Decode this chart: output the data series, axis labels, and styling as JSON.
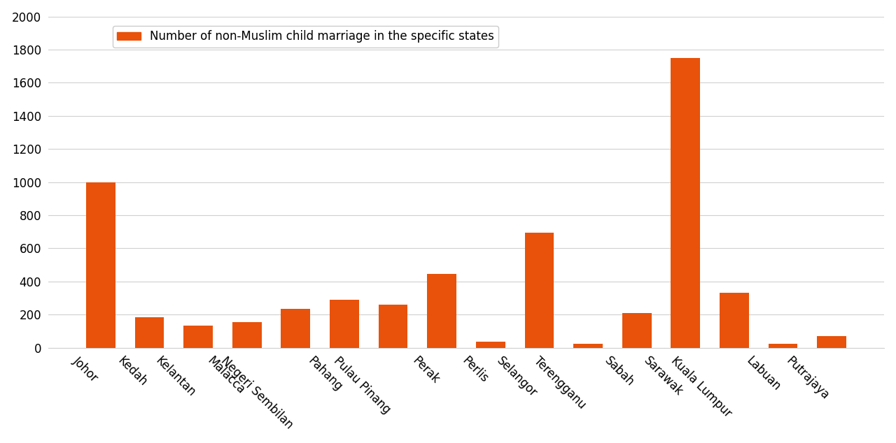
{
  "categories": [
    "Johor",
    "Kedah",
    "Kelantan",
    "Malacca",
    "Negeri Sembilan",
    "Pahang",
    "Pulau Pinang",
    "Perak",
    "Perlis",
    "Selangor",
    "Terengganu",
    "Sabah",
    "Sarawak",
    "Kuala Lumpur",
    "Labuan",
    "Putrajaya"
  ],
  "values": [
    1000,
    185,
    135,
    155,
    235,
    290,
    260,
    445,
    38,
    695,
    25,
    210,
    1750,
    330,
    22,
    70
  ],
  "bar_color": "#E8520A",
  "legend_label": "Number of non-Muslim child marriage in the specific states",
  "ylim": [
    0,
    2000
  ],
  "yticks": [
    0,
    200,
    400,
    600,
    800,
    1000,
    1200,
    1400,
    1600,
    1800,
    2000
  ],
  "background_color": "#ffffff",
  "grid_color": "#d0d0d0",
  "tick_label_color": "#000000",
  "tick_fontsize": 12,
  "legend_fontsize": 12,
  "figure_bg": "#ffffff"
}
